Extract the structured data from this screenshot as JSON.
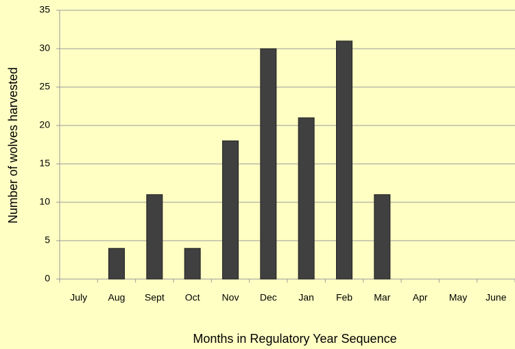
{
  "chart_data": {
    "type": "bar",
    "x_label": "Months in Regulatory Year Sequence",
    "y_label": "Number of wolves harvested",
    "categories": [
      "July",
      "Aug",
      "Sept",
      "Oct",
      "Nov",
      "Dec",
      "Jan",
      "Feb",
      "Mar",
      "Apr",
      "May",
      "June"
    ],
    "values": [
      0,
      4,
      11,
      4,
      18,
      30,
      21,
      31,
      11,
      0,
      0,
      0
    ],
    "color": "#404040",
    "ylim": [
      0,
      35
    ],
    "yticks": [
      0,
      5,
      10,
      15,
      20,
      25,
      30,
      35
    ],
    "grid": true
  }
}
